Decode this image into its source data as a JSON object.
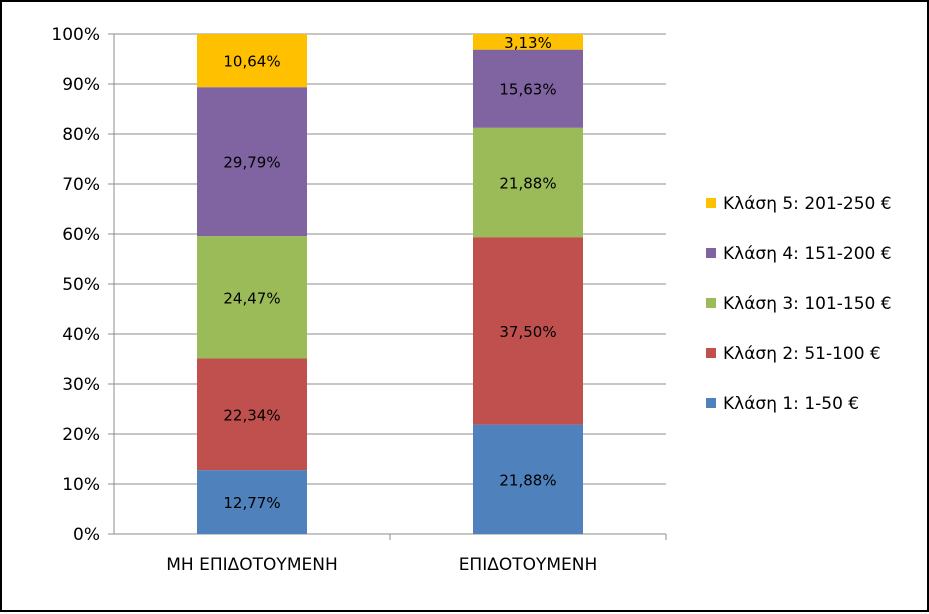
{
  "chart_data": {
    "type": "bar",
    "stacked": true,
    "percent_stacked": true,
    "categories": [
      "ΜΗ ΕΠΙΔΟΤΟΥΜΕΝΗ",
      "ΕΠΙΔΟΤΟΥΜΕΝΗ"
    ],
    "series": [
      {
        "name": "Κλάση 1: 1-50 €",
        "color": "#4F81BD",
        "values": [
          12.77,
          21.88
        ],
        "labels": [
          "12,77%",
          "21,88%"
        ]
      },
      {
        "name": "Κλάση 2: 51-100 €",
        "color": "#C0504D",
        "values": [
          22.34,
          37.5
        ],
        "labels": [
          "22,34%",
          "37,50%"
        ]
      },
      {
        "name": "Κλάση 3: 101-150 €",
        "color": "#9BBB59",
        "values": [
          24.47,
          21.88
        ],
        "labels": [
          "24,47%",
          "21,88%"
        ]
      },
      {
        "name": "Κλάση 4: 151-200 €",
        "color": "#8064A2",
        "values": [
          29.79,
          15.63
        ],
        "labels": [
          "29,79%",
          "15,63%"
        ]
      },
      {
        "name": "Κλάση 5: 201-250 €",
        "color": "#FFC000",
        "values": [
          10.64,
          3.13
        ],
        "labels": [
          "10,64%",
          "3,13%"
        ]
      }
    ],
    "ylim": [
      0,
      100
    ],
    "yticks": [
      "0%",
      "10%",
      "20%",
      "30%",
      "40%",
      "50%",
      "60%",
      "70%",
      "80%",
      "90%",
      "100%"
    ],
    "grid": true,
    "legend_position": "right"
  }
}
